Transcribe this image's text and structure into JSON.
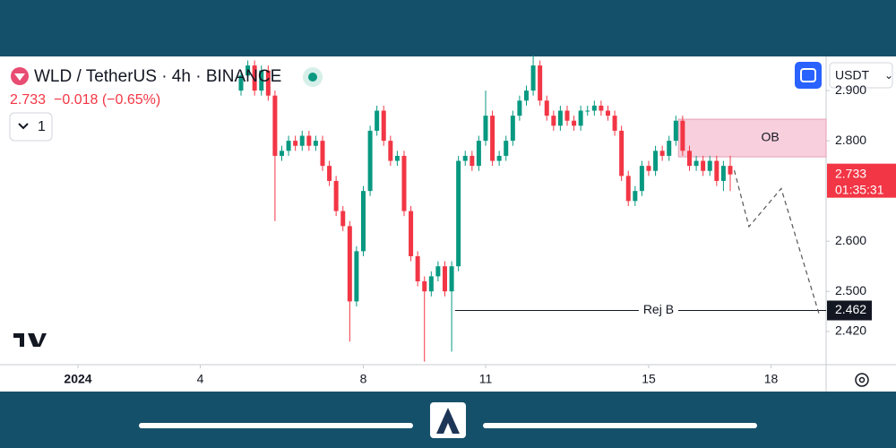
{
  "chart_data": {
    "type": "candlestick",
    "title": "WLD / TetherUS · 4h · BINANCE",
    "price_change": "−0.018 (−0.65%)",
    "interval_button": "1",
    "currency": "USDT",
    "countdown": "01:35:31",
    "up_color": "#089981",
    "down_color": "#f23645",
    "x": [
      5,
      5.167,
      5.333,
      5.5,
      5.667,
      5.833,
      6,
      6.167,
      6.333,
      6.5,
      6.667,
      6.833,
      7,
      7.167,
      7.333,
      7.5,
      7.667,
      7.833,
      8,
      8.167,
      8.333,
      8.5,
      8.667,
      8.833,
      9,
      9.167,
      9.333,
      9.5,
      9.667,
      9.833,
      10,
      10.167,
      10.333,
      10.5,
      10.667,
      10.833,
      11,
      11.167,
      11.333,
      11.5,
      11.667,
      11.833,
      12,
      12.167,
      12.333,
      12.5,
      12.667,
      12.833,
      13,
      13.167,
      13.333,
      13.5,
      13.667,
      13.833,
      14,
      14.167,
      14.333,
      14.5,
      14.667,
      14.833,
      15,
      15.167,
      15.333,
      15.5,
      15.667,
      15.833,
      16,
      16.167,
      16.333,
      16.5,
      16.667,
      16.833,
      17
    ],
    "open": [
      2.9,
      2.93,
      2.95,
      2.9,
      2.94,
      2.89,
      2.77,
      2.78,
      2.8,
      2.79,
      2.81,
      2.79,
      2.8,
      2.75,
      2.72,
      2.66,
      2.63,
      2.48,
      2.58,
      2.7,
      2.82,
      2.86,
      2.8,
      2.76,
      2.77,
      2.66,
      2.57,
      2.52,
      2.5,
      2.53,
      2.55,
      2.5,
      2.55,
      2.76,
      2.77,
      2.75,
      2.8,
      2.85,
      2.76,
      2.77,
      2.8,
      2.85,
      2.88,
      2.9,
      2.95,
      2.88,
      2.85,
      2.83,
      2.86,
      2.84,
      2.83,
      2.86,
      2.86,
      2.87,
      2.86,
      2.85,
      2.82,
      2.73,
      2.68,
      2.7,
      2.75,
      2.74,
      2.78,
      2.77,
      2.8,
      2.84,
      2.78,
      2.75,
      2.76,
      2.74,
      2.76,
      2.72,
      2.75
    ],
    "high": [
      2.94,
      2.96,
      2.96,
      2.95,
      2.95,
      2.9,
      2.79,
      2.81,
      2.81,
      2.82,
      2.82,
      2.81,
      2.81,
      2.76,
      2.73,
      2.67,
      2.64,
      2.59,
      2.71,
      2.83,
      2.87,
      2.87,
      2.81,
      2.78,
      2.78,
      2.67,
      2.58,
      2.53,
      2.54,
      2.56,
      2.56,
      2.56,
      2.77,
      2.78,
      2.78,
      2.81,
      2.9,
      2.86,
      2.78,
      2.81,
      2.86,
      2.89,
      2.91,
      2.97,
      2.96,
      2.89,
      2.86,
      2.87,
      2.87,
      2.85,
      2.87,
      2.87,
      2.88,
      2.88,
      2.87,
      2.86,
      2.83,
      2.74,
      2.71,
      2.76,
      2.76,
      2.79,
      2.79,
      2.81,
      2.85,
      2.85,
      2.79,
      2.77,
      2.77,
      2.77,
      2.77,
      2.76,
      2.77
    ],
    "low": [
      2.89,
      2.92,
      2.89,
      2.89,
      2.88,
      2.64,
      2.76,
      2.77,
      2.78,
      2.78,
      2.78,
      2.78,
      2.74,
      2.71,
      2.65,
      2.62,
      2.4,
      2.47,
      2.57,
      2.69,
      2.81,
      2.79,
      2.75,
      2.75,
      2.65,
      2.56,
      2.51,
      2.36,
      2.49,
      2.52,
      2.49,
      2.38,
      2.54,
      2.75,
      2.74,
      2.74,
      2.79,
      2.75,
      2.75,
      2.76,
      2.79,
      2.84,
      2.87,
      2.89,
      2.87,
      2.84,
      2.82,
      2.82,
      2.83,
      2.82,
      2.82,
      2.85,
      2.85,
      2.85,
      2.84,
      2.81,
      2.72,
      2.67,
      2.67,
      2.69,
      2.73,
      2.73,
      2.76,
      2.76,
      2.79,
      2.77,
      2.74,
      2.74,
      2.73,
      2.73,
      2.71,
      2.7,
      2.7
    ],
    "close": [
      2.93,
      2.95,
      2.9,
      2.94,
      2.89,
      2.77,
      2.78,
      2.8,
      2.79,
      2.81,
      2.79,
      2.8,
      2.75,
      2.72,
      2.66,
      2.63,
      2.48,
      2.58,
      2.7,
      2.82,
      2.86,
      2.8,
      2.76,
      2.77,
      2.66,
      2.57,
      2.52,
      2.5,
      2.53,
      2.55,
      2.5,
      2.55,
      2.76,
      2.77,
      2.75,
      2.8,
      2.85,
      2.76,
      2.77,
      2.8,
      2.85,
      2.88,
      2.9,
      2.95,
      2.88,
      2.85,
      2.83,
      2.86,
      2.84,
      2.83,
      2.86,
      2.86,
      2.87,
      2.86,
      2.85,
      2.82,
      2.73,
      2.68,
      2.7,
      2.75,
      2.74,
      2.78,
      2.77,
      2.8,
      2.84,
      2.78,
      2.75,
      2.76,
      2.74,
      2.76,
      2.72,
      2.75,
      2.733
    ],
    "xlim": [
      -0.912,
      19.352
    ],
    "ylim": [
      2.354,
      2.968
    ],
    "xticks": [
      {
        "value": 1,
        "label": "2024"
      },
      4,
      8,
      11,
      15,
      18
    ],
    "yticks": [
      {
        "value": 2.9,
        "label": "2.900"
      },
      {
        "value": 2.8,
        "label": "2.800"
      },
      {
        "value": 2.6,
        "label": "2.600"
      },
      {
        "value": 2.5,
        "label": "2.500"
      },
      {
        "value": 2.42,
        "label": "2.420"
      }
    ],
    "zone": {
      "label": "OB",
      "x0": 15.73,
      "y": [
        2.768,
        2.843
      ],
      "color": "#f8cfdc"
    },
    "level": {
      "label": "Rej B",
      "x0": 10.25,
      "value": 2.462
    },
    "projection": {
      "x": [
        17.1,
        17.46,
        18.25,
        19.19
      ],
      "y": [
        2.741,
        2.629,
        2.705,
        2.452
      ]
    }
  }
}
